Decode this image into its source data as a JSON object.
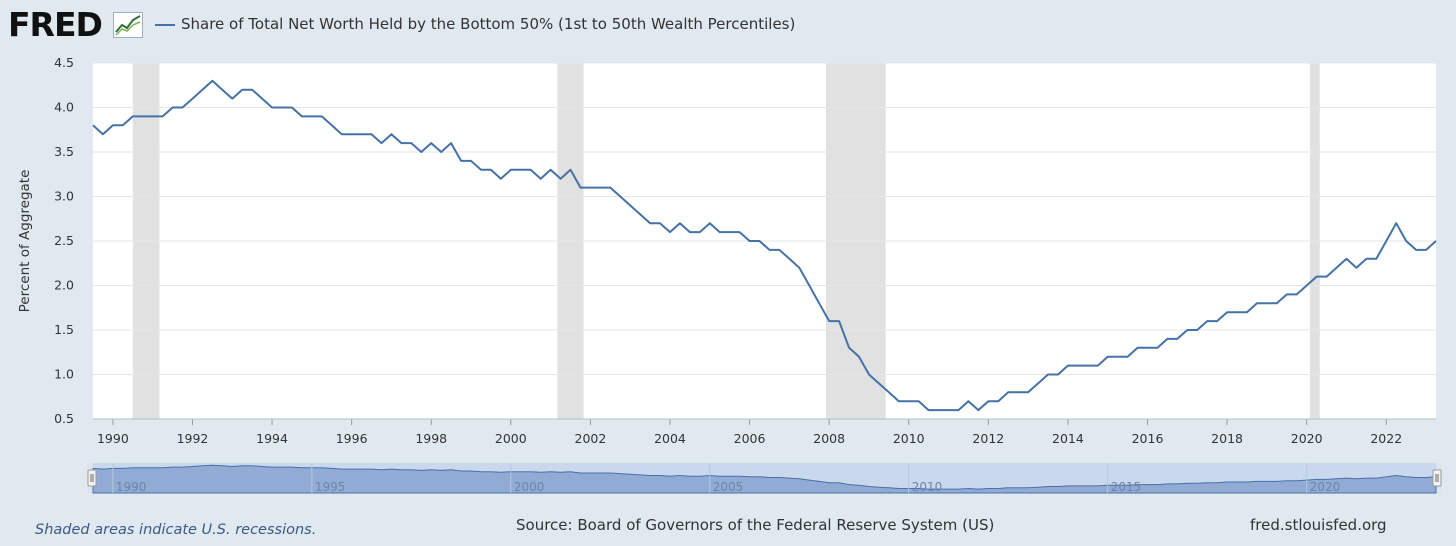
{
  "header": {
    "logo_text": "FRED",
    "logo_icon": "trend-chart-icon",
    "series_title": "Share of Total Net Worth Held by the Bottom 50% (1st to 50th Wealth Percentiles)"
  },
  "footer": {
    "note": "Shaded areas indicate U.S. recessions.",
    "source": "Source: Board of Governors of the Federal Reserve System (US)",
    "url": "fred.stlouisfed.org"
  },
  "colors": {
    "line": "#4572a7",
    "recession": "#e1e1e1",
    "background": "#e1e9f0",
    "plot_bg": "#ffffff",
    "navigator_fill": "#7f9ccc"
  },
  "chart_data": {
    "type": "line",
    "title": "Share of Total Net Worth Held by the Bottom 50% (1st to 50th Wealth Percentiles)",
    "ylabel": "Percent of Aggregate",
    "xlabel": "",
    "xlim": [
      1989.5,
      2023.25
    ],
    "ylim": [
      0.5,
      4.5
    ],
    "grid": true,
    "legend_position": "top-left",
    "xticks": [
      "1990",
      "1992",
      "1994",
      "1996",
      "1998",
      "2000",
      "2002",
      "2004",
      "2006",
      "2008",
      "2010",
      "2012",
      "2014",
      "2016",
      "2018",
      "2020",
      "2022"
    ],
    "yticks": [
      "0.5",
      "1.0",
      "1.5",
      "2.0",
      "2.5",
      "3.0",
      "3.5",
      "4.0",
      "4.5"
    ],
    "navigator_ticks": [
      "1990",
      "1995",
      "2000",
      "2005",
      "2010",
      "2015",
      "2020"
    ],
    "recessions": [
      [
        1990.5,
        1991.17
      ],
      [
        2001.17,
        2001.83
      ],
      [
        2007.92,
        2009.42
      ],
      [
        2020.08,
        2020.33
      ]
    ],
    "series": [
      {
        "name": "Share of Total Net Worth Held by the Bottom 50% (1st to 50th Wealth Percentiles)",
        "x": [
          1989.5,
          1989.75,
          1990,
          1990.25,
          1990.5,
          1990.75,
          1991,
          1991.25,
          1991.5,
          1991.75,
          1992,
          1992.25,
          1992.5,
          1992.75,
          1993,
          1993.25,
          1993.5,
          1993.75,
          1994,
          1994.25,
          1994.5,
          1994.75,
          1995,
          1995.25,
          1995.5,
          1995.75,
          1996,
          1996.25,
          1996.5,
          1996.75,
          1997,
          1997.25,
          1997.5,
          1997.75,
          1998,
          1998.25,
          1998.5,
          1998.75,
          1999,
          1999.25,
          1999.5,
          1999.75,
          2000,
          2000.25,
          2000.5,
          2000.75,
          2001,
          2001.25,
          2001.5,
          2001.75,
          2002,
          2002.25,
          2002.5,
          2002.75,
          2003,
          2003.25,
          2003.5,
          2003.75,
          2004,
          2004.25,
          2004.5,
          2004.75,
          2005,
          2005.25,
          2005.5,
          2005.75,
          2006,
          2006.25,
          2006.5,
          2006.75,
          2007,
          2007.25,
          2007.5,
          2007.75,
          2008,
          2008.25,
          2008.5,
          2008.75,
          2009,
          2009.25,
          2009.5,
          2009.75,
          2010,
          2010.25,
          2010.5,
          2010.75,
          2011,
          2011.25,
          2011.5,
          2011.75,
          2012,
          2012.25,
          2012.5,
          2012.75,
          2013,
          2013.25,
          2013.5,
          2013.75,
          2014,
          2014.25,
          2014.5,
          2014.75,
          2015,
          2015.25,
          2015.5,
          2015.75,
          2016,
          2016.25,
          2016.5,
          2016.75,
          2017,
          2017.25,
          2017.5,
          2017.75,
          2018,
          2018.25,
          2018.5,
          2018.75,
          2019,
          2019.25,
          2019.5,
          2019.75,
          2020,
          2020.25,
          2020.5,
          2020.75,
          2021,
          2021.25,
          2021.5,
          2021.75,
          2022,
          2022.25,
          2022.5,
          2022.75,
          2023,
          2023.25
        ],
        "y": [
          3.8,
          3.7,
          3.8,
          3.8,
          3.9,
          3.9,
          3.9,
          3.9,
          4.0,
          4.0,
          4.1,
          4.2,
          4.3,
          4.2,
          4.1,
          4.2,
          4.2,
          4.1,
          4.0,
          4.0,
          4.0,
          3.9,
          3.9,
          3.9,
          3.8,
          3.7,
          3.7,
          3.7,
          3.7,
          3.6,
          3.7,
          3.6,
          3.6,
          3.5,
          3.6,
          3.5,
          3.6,
          3.4,
          3.4,
          3.3,
          3.3,
          3.2,
          3.3,
          3.3,
          3.3,
          3.2,
          3.3,
          3.2,
          3.3,
          3.1,
          3.1,
          3.1,
          3.1,
          3.0,
          2.9,
          2.8,
          2.7,
          2.7,
          2.6,
          2.7,
          2.6,
          2.6,
          2.7,
          2.6,
          2.6,
          2.6,
          2.5,
          2.5,
          2.4,
          2.4,
          2.3,
          2.2,
          2.0,
          1.8,
          1.6,
          1.6,
          1.3,
          1.2,
          1.0,
          0.9,
          0.8,
          0.7,
          0.7,
          0.7,
          0.6,
          0.6,
          0.6,
          0.6,
          0.7,
          0.6,
          0.7,
          0.7,
          0.8,
          0.8,
          0.8,
          0.9,
          1.0,
          1.0,
          1.1,
          1.1,
          1.1,
          1.1,
          1.2,
          1.2,
          1.2,
          1.3,
          1.3,
          1.3,
          1.4,
          1.4,
          1.5,
          1.5,
          1.6,
          1.6,
          1.7,
          1.7,
          1.7,
          1.8,
          1.8,
          1.8,
          1.9,
          1.9,
          2.0,
          2.1,
          2.1,
          2.2,
          2.3,
          2.2,
          2.3,
          2.3,
          2.5,
          2.7,
          2.5,
          2.4,
          2.4,
          2.5
        ]
      }
    ]
  }
}
